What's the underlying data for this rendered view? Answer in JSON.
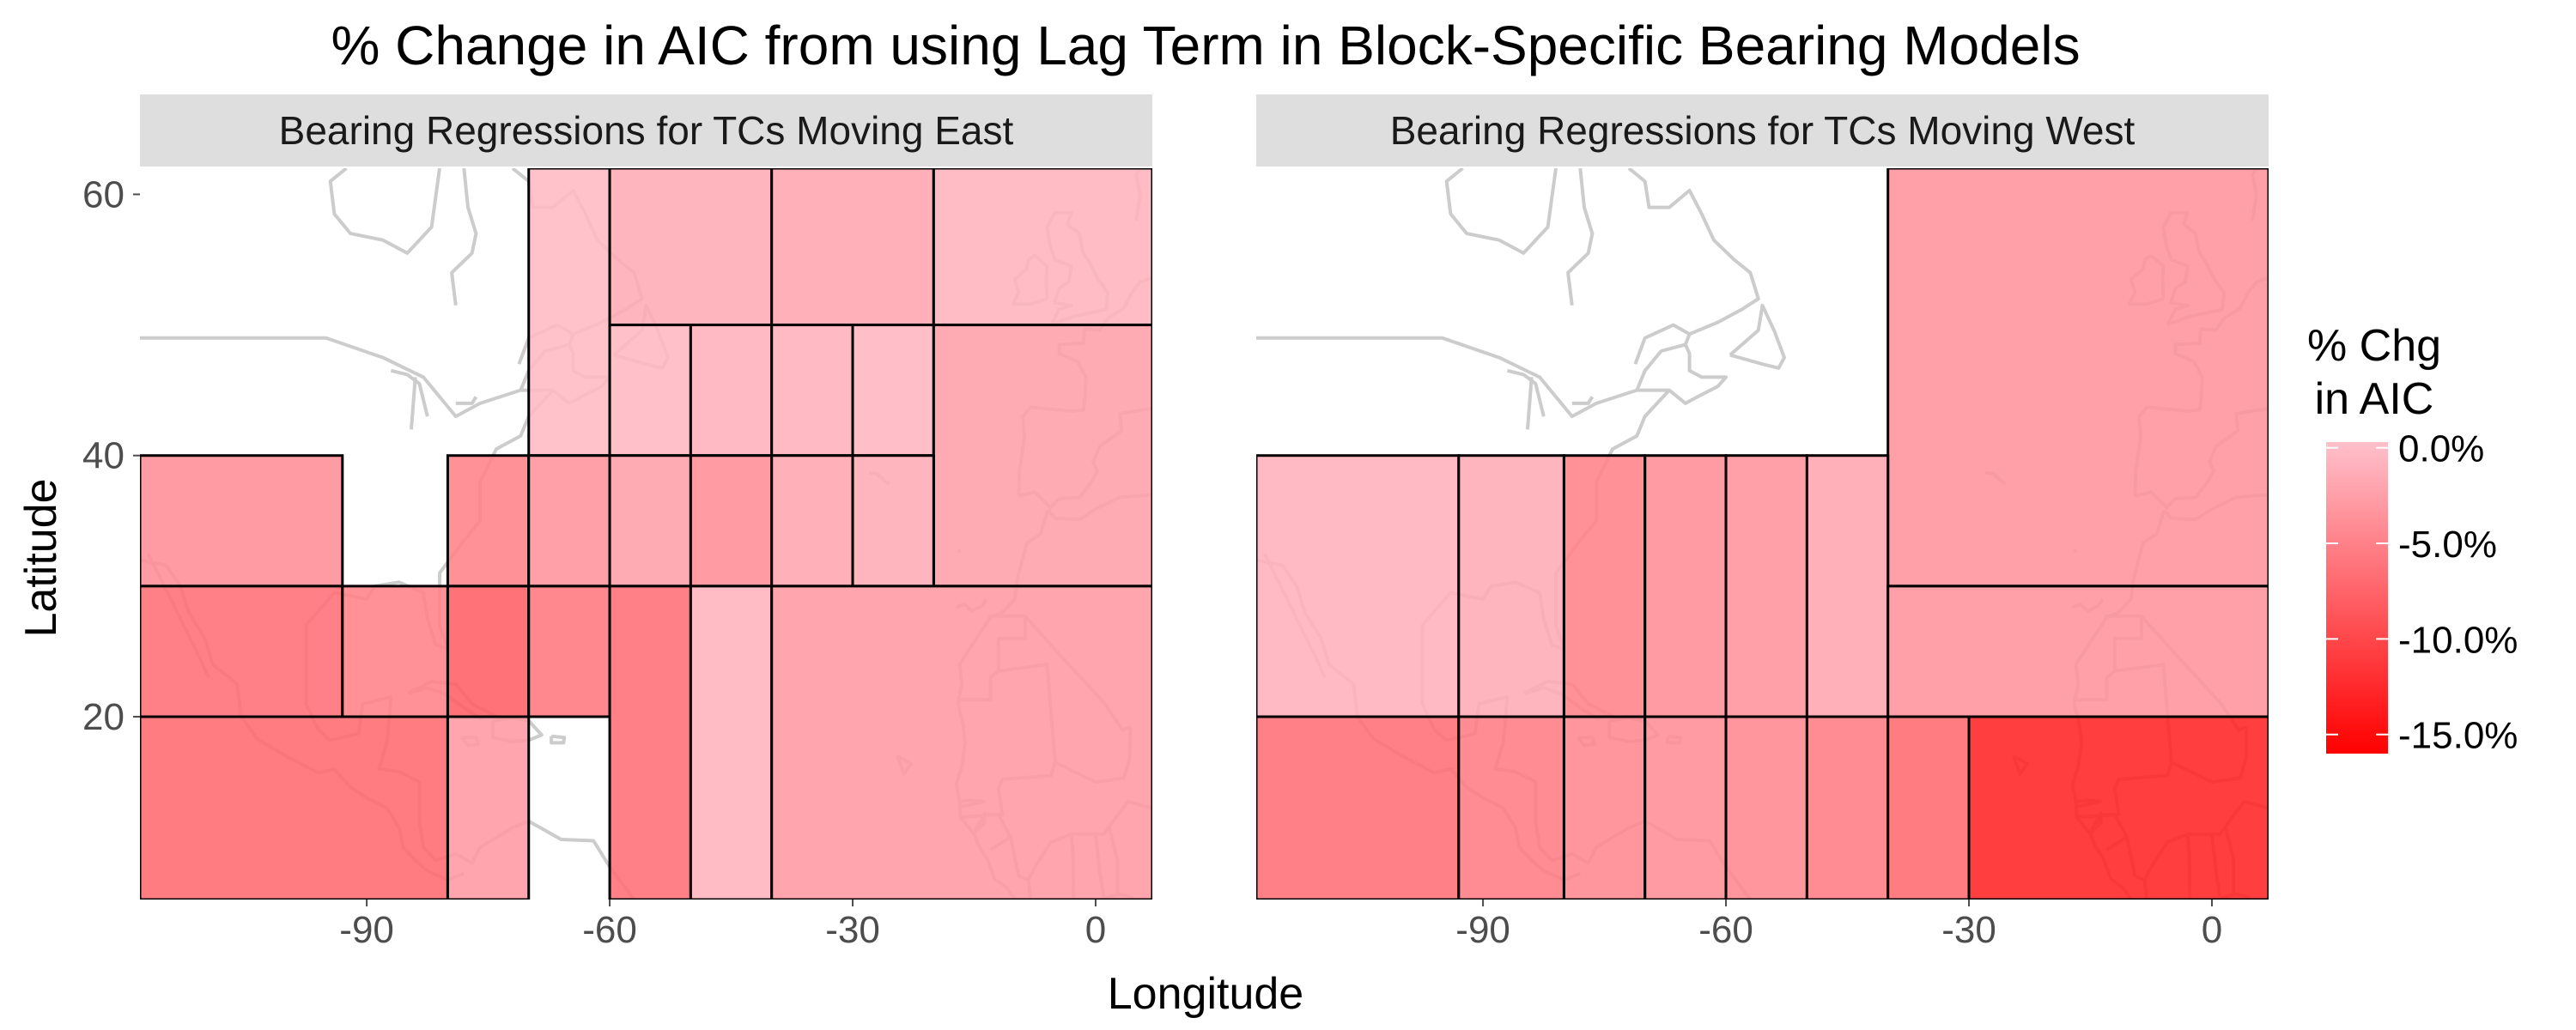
{
  "title": "% Change in AIC from using Lag Term in Block-Specific Bearing Models",
  "x_axis_title": "Longitude",
  "y_axis_title": "Latitude",
  "legend": {
    "title_line1": "% Chg",
    "title_line2": "in AIC",
    "breaks": [
      {
        "value": 0,
        "label": "0.0%"
      },
      {
        "value": -5,
        "label": "-5.0%"
      },
      {
        "value": -10,
        "label": "-10.0%"
      },
      {
        "value": -15,
        "label": "-15.0%"
      }
    ],
    "color_low": "#ff0000",
    "color_high": "#ffc0cb",
    "limits": [
      -16,
      0.3
    ]
  },
  "colors": {
    "strip_bg": "#dedede",
    "block_border": "#000000",
    "coastline": "#cccccc"
  },
  "chart_data": [
    {
      "type": "heatmap",
      "panel": "Bearing Regressions for TCs Moving East",
      "xlim": [
        -118,
        7
      ],
      "ylim": [
        6,
        62
      ],
      "x_ticks": [
        {
          "value": -90,
          "label": "-90"
        },
        {
          "value": -60,
          "label": "-60"
        },
        {
          "value": -30,
          "label": "-30"
        },
        {
          "value": 0,
          "label": "0"
        }
      ],
      "y_ticks": [
        {
          "value": 20,
          "label": "20"
        },
        {
          "value": 40,
          "label": "40"
        },
        {
          "value": 60,
          "label": "60"
        }
      ],
      "blocks": [
        {
          "lon": [
            -70,
            -60
          ],
          "lat": [
            40,
            62
          ],
          "value": -0.3
        },
        {
          "lon": [
            -60,
            -40
          ],
          "lat": [
            50,
            62
          ],
          "value": -1.5
        },
        {
          "lon": [
            -40,
            -20
          ],
          "lat": [
            50,
            62
          ],
          "value": -2.0
        },
        {
          "lon": [
            -20,
            7
          ],
          "lat": [
            50,
            62
          ],
          "value": -0.8
        },
        {
          "lon": [
            -60,
            -50
          ],
          "lat": [
            40,
            50
          ],
          "value": -0.5
        },
        {
          "lon": [
            -50,
            -40
          ],
          "lat": [
            40,
            50
          ],
          "value": -1.0
        },
        {
          "lon": [
            -40,
            -30
          ],
          "lat": [
            40,
            50
          ],
          "value": -1.0
        },
        {
          "lon": [
            -30,
            -20
          ],
          "lat": [
            40,
            50
          ],
          "value": -0.6
        },
        {
          "lon": [
            -20,
            7
          ],
          "lat": [
            30,
            50
          ],
          "value": -2.5
        },
        {
          "lon": [
            -118,
            -93
          ],
          "lat": [
            30,
            40
          ],
          "value": -4.0
        },
        {
          "lon": [
            -80,
            -70
          ],
          "lat": [
            30,
            40
          ],
          "value": -5.0
        },
        {
          "lon": [
            -70,
            -60
          ],
          "lat": [
            30,
            40
          ],
          "value": -3.5
        },
        {
          "lon": [
            -60,
            -50
          ],
          "lat": [
            30,
            40
          ],
          "value": -2.5
        },
        {
          "lon": [
            -50,
            -40
          ],
          "lat": [
            30,
            40
          ],
          "value": -4.0
        },
        {
          "lon": [
            -40,
            -30
          ],
          "lat": [
            30,
            40
          ],
          "value": -2.0
        },
        {
          "lon": [
            -30,
            -20
          ],
          "lat": [
            30,
            40
          ],
          "value": -1.5
        },
        {
          "lon": [
            -118,
            -93
          ],
          "lat": [
            20,
            30
          ],
          "value": -6.5
        },
        {
          "lon": [
            -93,
            -80
          ],
          "lat": [
            20,
            30
          ],
          "value": -5.0
        },
        {
          "lon": [
            -80,
            -70
          ],
          "lat": [
            20,
            30
          ],
          "value": -8.0
        },
        {
          "lon": [
            -70,
            -60
          ],
          "lat": [
            20,
            30
          ],
          "value": -6.0
        },
        {
          "lon": [
            -60,
            -50
          ],
          "lat": [
            6,
            30
          ],
          "value": -6.5
        },
        {
          "lon": [
            -50,
            -40
          ],
          "lat": [
            6,
            30
          ],
          "value": -0.8
        },
        {
          "lon": [
            -40,
            7
          ],
          "lat": [
            6,
            30
          ],
          "value": -3.0
        },
        {
          "lon": [
            -118,
            -80
          ],
          "lat": [
            6,
            20
          ],
          "value": -7.0
        },
        {
          "lon": [
            -80,
            -70
          ],
          "lat": [
            6,
            20
          ],
          "value": -3.0
        }
      ]
    },
    {
      "type": "heatmap",
      "panel": "Bearing Regressions for TCs Moving West",
      "xlim": [
        -118,
        7
      ],
      "ylim": [
        6,
        62
      ],
      "x_ticks": [
        {
          "value": -90,
          "label": "-90"
        },
        {
          "value": -60,
          "label": "-60"
        },
        {
          "value": -30,
          "label": "-30"
        },
        {
          "value": 0,
          "label": "0"
        }
      ],
      "y_ticks": [
        {
          "value": 20,
          "label": "20"
        },
        {
          "value": 40,
          "label": "40"
        },
        {
          "value": 60,
          "label": "60"
        }
      ],
      "blocks": [
        {
          "lon": [
            -40,
            7
          ],
          "lat": [
            30,
            62
          ],
          "value": -3.5
        },
        {
          "lon": [
            -118,
            -93
          ],
          "lat": [
            20,
            40
          ],
          "value": -1.0
        },
        {
          "lon": [
            -93,
            -80
          ],
          "lat": [
            20,
            40
          ],
          "value": -1.5
        },
        {
          "lon": [
            -80,
            -70
          ],
          "lat": [
            20,
            40
          ],
          "value": -5.0
        },
        {
          "lon": [
            -70,
            -60
          ],
          "lat": [
            20,
            40
          ],
          "value": -4.0
        },
        {
          "lon": [
            -60,
            -50
          ],
          "lat": [
            20,
            40
          ],
          "value": -3.5
        },
        {
          "lon": [
            -50,
            -40
          ],
          "lat": [
            20,
            40
          ],
          "value": -2.0
        },
        {
          "lon": [
            -40,
            7
          ],
          "lat": [
            20,
            30
          ],
          "value": -3.5
        },
        {
          "lon": [
            -118,
            -93
          ],
          "lat": [
            6,
            20
          ],
          "value": -6.5
        },
        {
          "lon": [
            -93,
            -80
          ],
          "lat": [
            6,
            20
          ],
          "value": -5.5
        },
        {
          "lon": [
            -80,
            -70
          ],
          "lat": [
            6,
            20
          ],
          "value": -4.5
        },
        {
          "lon": [
            -70,
            -60
          ],
          "lat": [
            6,
            20
          ],
          "value": -4.0
        },
        {
          "lon": [
            -60,
            -50
          ],
          "lat": [
            6,
            20
          ],
          "value": -4.5
        },
        {
          "lon": [
            -50,
            -40
          ],
          "lat": [
            6,
            20
          ],
          "value": -5.5
        },
        {
          "lon": [
            -40,
            -30
          ],
          "lat": [
            6,
            20
          ],
          "value": -7.0
        },
        {
          "lon": [
            -30,
            7
          ],
          "lat": [
            6,
            20
          ],
          "value": -13.0
        }
      ]
    }
  ]
}
